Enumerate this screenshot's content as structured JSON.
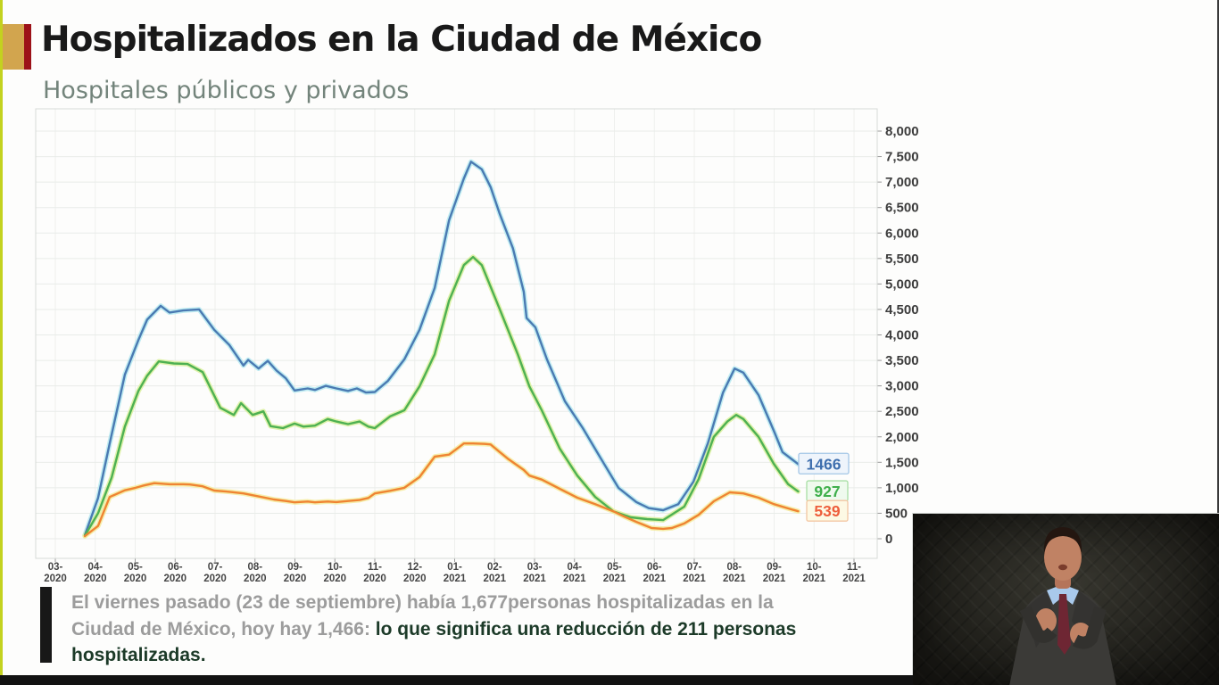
{
  "header": {
    "title": "Hospitalizados en la Ciudad de México",
    "subtitle": "Hospitales públicos y privados"
  },
  "chart_data": {
    "type": "line",
    "title": "Hospitalizados en la Ciudad de México",
    "subtitle": "Hospitales públicos y privados",
    "xlabel": "",
    "ylabel": "",
    "grid": true,
    "legend_position": "none (end-of-line value labels)",
    "x_unit": "months from 2020-03 tick",
    "y_domain": [
      0,
      8400
    ],
    "x_tick_labels": [
      "03-2020",
      "04-2020",
      "05-2020",
      "06-2020",
      "07-2020",
      "08-2020",
      "09-2020",
      "10-2020",
      "11-2020",
      "12-2020",
      "01-2021",
      "02-2021",
      "03-2021",
      "04-2021",
      "05-2021",
      "06-2021",
      "07-2021",
      "08-2021",
      "09-2021",
      "10-2021",
      "11-2021"
    ],
    "y_ticks": [
      {
        "v": 0,
        "label": "0"
      },
      {
        "v": 500,
        "label": "500"
      },
      {
        "v": 1000,
        "label": "1,000"
      },
      {
        "v": 1500,
        "label": "1,500"
      },
      {
        "v": 2000,
        "label": "2,000"
      },
      {
        "v": 2500,
        "label": "2,500"
      },
      {
        "v": 3000,
        "label": "3,000"
      },
      {
        "v": 3500,
        "label": "3,500"
      },
      {
        "v": 4000,
        "label": "4,000"
      },
      {
        "v": 4500,
        "label": "4,500"
      },
      {
        "v": 5000,
        "label": "5,000"
      },
      {
        "v": 5500,
        "label": "5,500"
      },
      {
        "v": 6000,
        "label": "6,000"
      },
      {
        "v": 6500,
        "label": "6,500"
      },
      {
        "v": 7000,
        "label": "7,000"
      },
      {
        "v": 7500,
        "label": "7,500"
      },
      {
        "v": 8000,
        "label": "8,000"
      }
    ],
    "series": [
      {
        "key": "serie-azul-total",
        "color": "#4a7ab2",
        "halo": "#b5e9f0",
        "end_label": "1466",
        "label_color": "#3f6fae",
        "box_border": "#a3c6e6",
        "box_bg": "#eef4fb",
        "points": [
          [
            0.74,
            70
          ],
          [
            1.07,
            800
          ],
          [
            1.36,
            1870
          ],
          [
            1.74,
            3220
          ],
          [
            2.08,
            3900
          ],
          [
            2.3,
            4300
          ],
          [
            2.64,
            4570
          ],
          [
            2.86,
            4440
          ],
          [
            3.2,
            4480
          ],
          [
            3.6,
            4500
          ],
          [
            3.98,
            4100
          ],
          [
            4.36,
            3800
          ],
          [
            4.71,
            3400
          ],
          [
            4.83,
            3510
          ],
          [
            5.09,
            3340
          ],
          [
            5.32,
            3490
          ],
          [
            5.54,
            3300
          ],
          [
            5.77,
            3150
          ],
          [
            5.99,
            2910
          ],
          [
            6.32,
            2950
          ],
          [
            6.5,
            2920
          ],
          [
            6.77,
            3000
          ],
          [
            7.04,
            2950
          ],
          [
            7.33,
            2900
          ],
          [
            7.55,
            2950
          ],
          [
            7.78,
            2870
          ],
          [
            8.0,
            2880
          ],
          [
            8.33,
            3100
          ],
          [
            8.74,
            3520
          ],
          [
            9.12,
            4100
          ],
          [
            9.5,
            4920
          ],
          [
            9.86,
            6250
          ],
          [
            10.23,
            7070
          ],
          [
            10.41,
            7400
          ],
          [
            10.68,
            7250
          ],
          [
            10.9,
            6900
          ],
          [
            11.13,
            6370
          ],
          [
            11.46,
            5700
          ],
          [
            11.73,
            4850
          ],
          [
            11.8,
            4330
          ],
          [
            12.02,
            4150
          ],
          [
            12.31,
            3520
          ],
          [
            12.76,
            2700
          ],
          [
            13.21,
            2170
          ],
          [
            13.65,
            1590
          ],
          [
            14.1,
            1000
          ],
          [
            14.55,
            720
          ],
          [
            14.86,
            600
          ],
          [
            15.22,
            560
          ],
          [
            15.6,
            680
          ],
          [
            15.98,
            1120
          ],
          [
            16.34,
            1870
          ],
          [
            16.72,
            2870
          ],
          [
            17.01,
            3340
          ],
          [
            17.23,
            3260
          ],
          [
            17.61,
            2820
          ],
          [
            17.99,
            2120
          ],
          [
            18.21,
            1700
          ],
          [
            18.6,
            1466
          ]
        ]
      },
      {
        "key": "serie-verde",
        "color": "#4eb152",
        "halo": "#d9f09c",
        "end_label": "927",
        "label_color": "#3faf4c",
        "box_border": "#a8dfa5",
        "box_bg": "#effaee",
        "points": [
          [
            0.74,
            60
          ],
          [
            1.07,
            500
          ],
          [
            1.41,
            1200
          ],
          [
            1.74,
            2200
          ],
          [
            2.08,
            2900
          ],
          [
            2.3,
            3200
          ],
          [
            2.59,
            3480
          ],
          [
            2.97,
            3440
          ],
          [
            3.31,
            3430
          ],
          [
            3.69,
            3270
          ],
          [
            4.13,
            2570
          ],
          [
            4.47,
            2430
          ],
          [
            4.65,
            2660
          ],
          [
            4.94,
            2430
          ],
          [
            5.21,
            2500
          ],
          [
            5.39,
            2210
          ],
          [
            5.7,
            2170
          ],
          [
            5.99,
            2260
          ],
          [
            6.21,
            2200
          ],
          [
            6.5,
            2220
          ],
          [
            6.82,
            2350
          ],
          [
            7.04,
            2300
          ],
          [
            7.33,
            2250
          ],
          [
            7.62,
            2300
          ],
          [
            7.84,
            2200
          ],
          [
            8.0,
            2170
          ],
          [
            8.38,
            2400
          ],
          [
            8.74,
            2520
          ],
          [
            9.12,
            2990
          ],
          [
            9.5,
            3620
          ],
          [
            9.86,
            4670
          ],
          [
            10.23,
            5370
          ],
          [
            10.46,
            5530
          ],
          [
            10.68,
            5370
          ],
          [
            11.13,
            4500
          ],
          [
            11.58,
            3620
          ],
          [
            11.87,
            2990
          ],
          [
            12.18,
            2520
          ],
          [
            12.63,
            1770
          ],
          [
            13.07,
            1240
          ],
          [
            13.52,
            820
          ],
          [
            13.97,
            540
          ],
          [
            14.41,
            420
          ],
          [
            14.82,
            385
          ],
          [
            15.22,
            365
          ],
          [
            15.75,
            630
          ],
          [
            16.11,
            1170
          ],
          [
            16.49,
            2000
          ],
          [
            16.83,
            2300
          ],
          [
            17.05,
            2430
          ],
          [
            17.23,
            2350
          ],
          [
            17.61,
            2000
          ],
          [
            17.99,
            1470
          ],
          [
            18.35,
            1070
          ],
          [
            18.6,
            927
          ]
        ]
      },
      {
        "key": "serie-naranja",
        "color": "#ef8432",
        "halo": "#f5eb9d",
        "end_label": "539",
        "label_color": "#ee5f3d",
        "box_border": "#f3c6a2",
        "box_bg": "#fdf9e4",
        "points": [
          [
            0.74,
            50
          ],
          [
            1.07,
            250
          ],
          [
            1.36,
            820
          ],
          [
            1.74,
            950
          ],
          [
            2.01,
            1000
          ],
          [
            2.19,
            1040
          ],
          [
            2.48,
            1090
          ],
          [
            2.86,
            1070
          ],
          [
            3.2,
            1070
          ],
          [
            3.37,
            1065
          ],
          [
            3.69,
            1030
          ],
          [
            3.98,
            945
          ],
          [
            4.36,
            920
          ],
          [
            4.71,
            890
          ],
          [
            5.09,
            830
          ],
          [
            5.47,
            770
          ],
          [
            5.77,
            740
          ],
          [
            5.99,
            715
          ],
          [
            6.32,
            730
          ],
          [
            6.5,
            715
          ],
          [
            6.82,
            730
          ],
          [
            7.04,
            720
          ],
          [
            7.33,
            740
          ],
          [
            7.62,
            760
          ],
          [
            7.84,
            800
          ],
          [
            8.0,
            890
          ],
          [
            8.38,
            940
          ],
          [
            8.74,
            1000
          ],
          [
            9.12,
            1210
          ],
          [
            9.5,
            1610
          ],
          [
            9.86,
            1650
          ],
          [
            10.08,
            1780
          ],
          [
            10.23,
            1870
          ],
          [
            10.46,
            1870
          ],
          [
            10.75,
            1860
          ],
          [
            10.9,
            1850
          ],
          [
            11.13,
            1700
          ],
          [
            11.35,
            1560
          ],
          [
            11.73,
            1350
          ],
          [
            11.87,
            1240
          ],
          [
            12.18,
            1160
          ],
          [
            12.63,
            980
          ],
          [
            13.07,
            805
          ],
          [
            13.52,
            680
          ],
          [
            13.97,
            540
          ],
          [
            14.26,
            430
          ],
          [
            14.55,
            330
          ],
          [
            14.93,
            210
          ],
          [
            15.22,
            195
          ],
          [
            15.44,
            210
          ],
          [
            15.75,
            300
          ],
          [
            16.11,
            470
          ],
          [
            16.49,
            735
          ],
          [
            16.89,
            910
          ],
          [
            17.23,
            890
          ],
          [
            17.61,
            805
          ],
          [
            17.99,
            680
          ],
          [
            18.35,
            595
          ],
          [
            18.6,
            539
          ]
        ]
      }
    ]
  },
  "footnote": {
    "lead": "El viernes pasado (23 de septiembre) había 1,677personas hospitalizadas en la Ciudad de México, hoy hay 1,466: ",
    "emphasis": "lo que significa una reducción de 211 personas hospitalizadas."
  }
}
